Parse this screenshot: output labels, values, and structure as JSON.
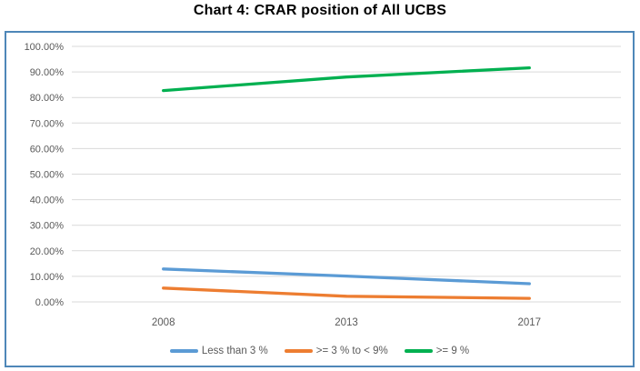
{
  "title": "Chart 4: CRAR position of All UCBS",
  "colors": {
    "background": "#ffffff",
    "chart_border": "#4E87B8",
    "gridline": "#D9D9D9",
    "tick_text": "#595959",
    "title_text": "#000000"
  },
  "chart_data": {
    "type": "line",
    "title": "Chart 4: CRAR position of All UCBS",
    "categories": [
      "2008",
      "2013",
      "2017"
    ],
    "series": [
      {
        "name": "Less than 3 %",
        "color": "#5B9BD5",
        "values": [
          12.9,
          10.1,
          7.1
        ]
      },
      {
        "name": ">= 3 % to < 9%",
        "color": "#ED7D31",
        "values": [
          5.4,
          2.2,
          1.4
        ]
      },
      {
        "name": ">= 9 %",
        "color": "#00B050",
        "values": [
          82.7,
          88.0,
          91.6
        ]
      }
    ],
    "xlabel": "",
    "ylabel": "",
    "ylim": [
      0,
      100
    ],
    "y_ticks": [
      {
        "value": 100,
        "label": "100.00%"
      },
      {
        "value": 90,
        "label": "90.00%"
      },
      {
        "value": 80,
        "label": "80.00%"
      },
      {
        "value": 70,
        "label": "70.00%"
      },
      {
        "value": 60,
        "label": "60.00%"
      },
      {
        "value": 50,
        "label": "50.00%"
      },
      {
        "value": 40,
        "label": "40.00%"
      },
      {
        "value": 30,
        "label": "30.00%"
      },
      {
        "value": 20,
        "label": "20.00%"
      },
      {
        "value": 10,
        "label": "10.00%"
      },
      {
        "value": 0,
        "label": "0.00%"
      }
    ],
    "grid": true,
    "legend_position": "bottom"
  }
}
